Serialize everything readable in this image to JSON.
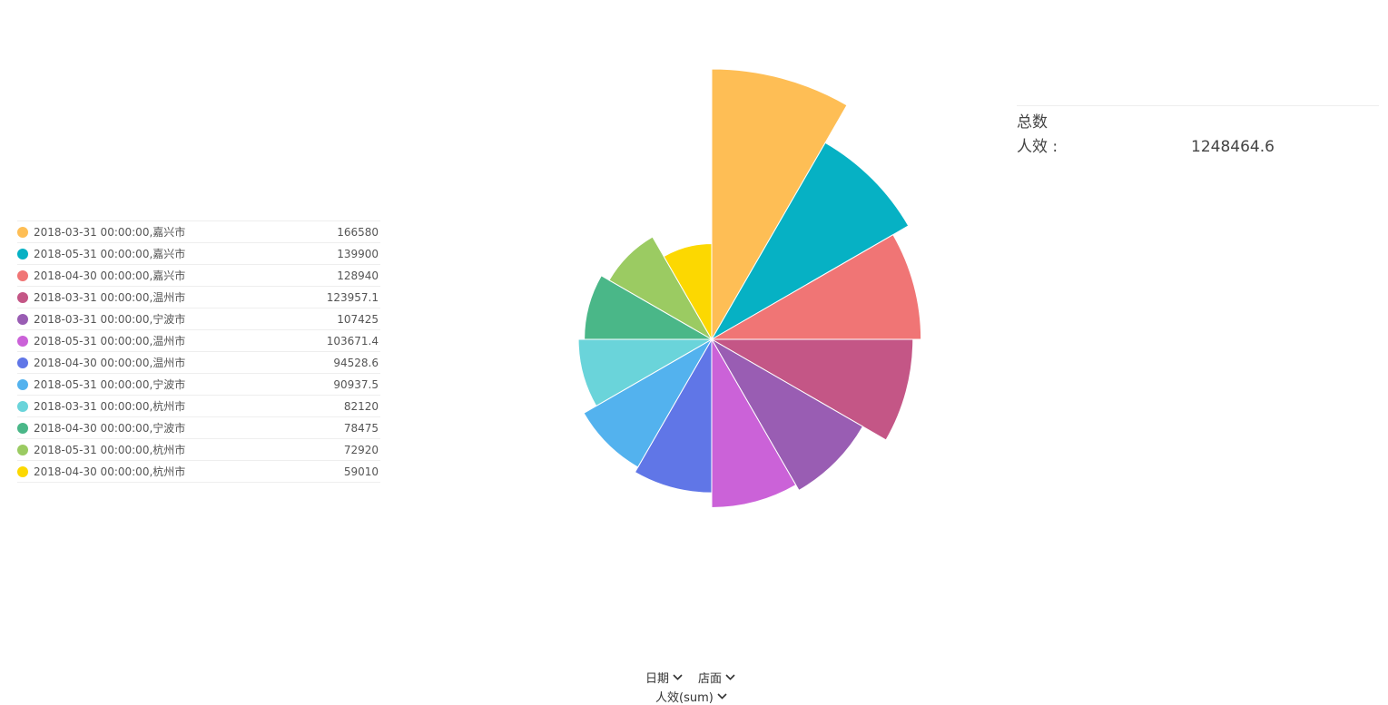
{
  "chart_data": {
    "type": "pie",
    "variant": "rose",
    "series_name": "人效",
    "categories": [
      "2018-03-31 00:00:00,嘉兴市",
      "2018-05-31 00:00:00,嘉兴市",
      "2018-04-30 00:00:00,嘉兴市",
      "2018-03-31 00:00:00,温州市",
      "2018-03-31 00:00:00,宁波市",
      "2018-05-31 00:00:00,温州市",
      "2018-04-30 00:00:00,温州市",
      "2018-05-31 00:00:00,宁波市",
      "2018-03-31 00:00:00,杭州市",
      "2018-04-30 00:00:00,宁波市",
      "2018-05-31 00:00:00,杭州市",
      "2018-04-30 00:00:00,杭州市"
    ],
    "values": [
      166580,
      139900,
      128940,
      123957.1,
      107425,
      103671.4,
      94528.6,
      90937.5,
      82120,
      78475,
      72920,
      59010
    ],
    "value_labels": [
      "166580",
      "139900",
      "128940",
      "123957.1",
      "107425",
      "103671.4",
      "94528.6",
      "90937.5",
      "82120",
      "78475",
      "72920",
      "59010"
    ],
    "colors": [
      "#FEBE55",
      "#06B1C4",
      "#F07575",
      "#C45686",
      "#995DB3",
      "#CB62D8",
      "#6076E7",
      "#53B2EE",
      "#6AD4DA",
      "#4AB788",
      "#9BCB62",
      "#FCD801"
    ],
    "legend_position": "left"
  },
  "summary": {
    "title": "总数",
    "metric_label": "人效 :",
    "metric_value": "1248464.6"
  },
  "fields": {
    "dimension_1": "日期",
    "dimension_2": "店面",
    "measure": "人效(sum)",
    "dropdown_icon": "chevron-down-icon"
  }
}
